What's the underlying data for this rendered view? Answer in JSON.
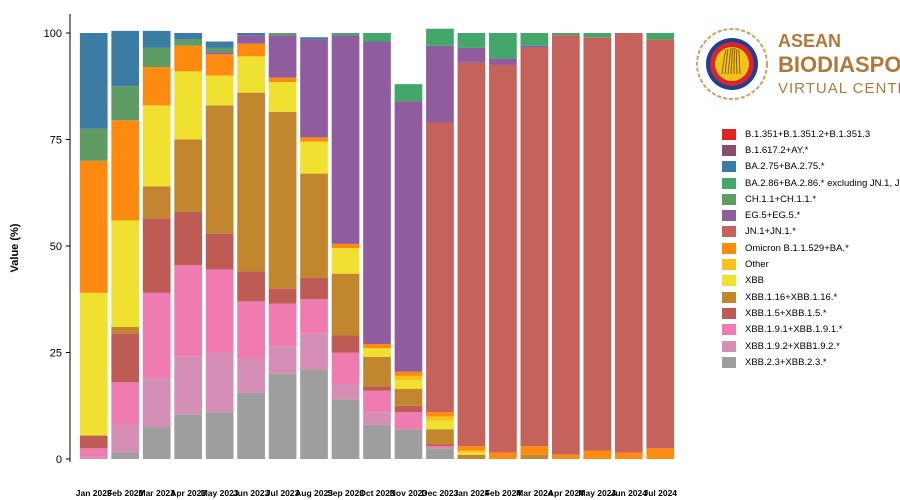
{
  "chart_data": {
    "type": "bar",
    "stacked": true,
    "ylabel": "Value (%)",
    "ylim": [
      0,
      100
    ],
    "yticks": [
      0,
      25,
      50,
      75,
      100
    ],
    "grid": false,
    "legend_position": "right",
    "categories": [
      "Jan 2023",
      "Feb 2023",
      "Mar 2023",
      "Apr 2023",
      "May 2023",
      "Jun 2023",
      "Jul 2023",
      "Aug 2023",
      "Sep 2023",
      "Oct 2023",
      "Nov 2023",
      "Dec 2023",
      "Jan 2024",
      "Feb 2024",
      "Mar 2024",
      "Apr 2024",
      "May 2024",
      "Jun 2024",
      "Jul 2024"
    ],
    "series": [
      {
        "name": "XBB.2.3+XBB.2.3.*",
        "color": "#9e9e9e",
        "values": [
          0,
          1.5,
          7.5,
          10.5,
          11,
          15.5,
          20,
          21,
          14,
          8,
          7,
          2.5,
          0,
          0,
          0,
          0,
          0,
          0,
          0
        ]
      },
      {
        "name": "XBB.1.9.2+XBB1.9.2.*",
        "color": "#d58fb7",
        "values": [
          0.5,
          6.5,
          11.5,
          13.5,
          14,
          8,
          6.5,
          8.5,
          3.5,
          3,
          0,
          0,
          0,
          0,
          0,
          0,
          0,
          0,
          0
        ]
      },
      {
        "name": "XBB.1.9.1+XBB.1.9.1.*",
        "color": "#ef7bb0",
        "values": [
          2,
          10,
          20,
          21.5,
          19.5,
          13.5,
          10,
          8,
          7.5,
          5,
          4,
          0.5,
          0,
          0,
          0,
          0,
          0,
          0,
          0
        ]
      },
      {
        "name": "XBB.1.5+XBB.1.5.*",
        "color": "#bf5b55",
        "values": [
          3,
          11.5,
          17.5,
          12.5,
          8.5,
          7,
          3.5,
          5,
          4,
          1,
          1.5,
          0.5,
          0,
          0,
          0,
          0,
          0,
          0,
          0
        ]
      },
      {
        "name": "XBB.1.16+XBB.1.16.*",
        "color": "#c1862e",
        "values": [
          0,
          1.5,
          7.5,
          17,
          30,
          42,
          41.5,
          24.5,
          14.5,
          7,
          4,
          3.5,
          1,
          0,
          1,
          0,
          0,
          0,
          0
        ]
      },
      {
        "name": "XBB",
        "color": "#f0e130",
        "values": [
          33.5,
          25,
          19,
          16,
          7,
          8.5,
          7,
          7.5,
          6,
          2,
          2,
          2,
          0.5,
          0,
          0,
          0,
          0,
          0,
          0
        ]
      },
      {
        "name": "Other",
        "color": "#f6c21c",
        "values": [
          0,
          0,
          0,
          0,
          0,
          0,
          0,
          0,
          0,
          0,
          1,
          1,
          0.5,
          0,
          0,
          0,
          0,
          0,
          0
        ]
      },
      {
        "name": "Omicron B.1.1.529+BA.*",
        "color": "#fe8a0f",
        "values": [
          31,
          23.5,
          9,
          6,
          5,
          3,
          1,
          1,
          1,
          1,
          1,
          1,
          1,
          1.5,
          2,
          1,
          2,
          1.5,
          2.5
        ]
      },
      {
        "name": "JN.1+JN.1.*",
        "color": "#c5625c",
        "values": [
          0,
          0,
          0,
          0,
          0,
          0,
          0,
          0,
          0,
          0,
          0,
          68,
          90,
          91,
          93.5,
          98.5,
          97,
          98.5,
          96
        ]
      },
      {
        "name": "EG.5+EG.5.*",
        "color": "#8f5c9e",
        "values": [
          0,
          0,
          0,
          0,
          0.5,
          2,
          10,
          23,
          49,
          71,
          63.5,
          18,
          3.5,
          1.5,
          0.5,
          0,
          0,
          0,
          0
        ]
      },
      {
        "name": "CH.1.1+CH.1.1.*",
        "color": "#5f9c63",
        "values": [
          7.5,
          8,
          4.5,
          1.5,
          1,
          0,
          0.5,
          0,
          0,
          0,
          0,
          0,
          0,
          0,
          0,
          0,
          0,
          0,
          0
        ]
      },
      {
        "name": "BA.2.86+BA.2.86.* excluding JN.1, JN.1.*",
        "color": "#43a76b",
        "values": [
          0,
          0,
          0,
          0,
          0,
          0,
          0,
          0,
          0.5,
          2,
          4,
          4,
          3.5,
          6,
          3,
          0.5,
          1,
          0,
          1.5
        ]
      },
      {
        "name": "BA.2.75+BA.2.75.*",
        "color": "#3b7ca4",
        "values": [
          22.5,
          13,
          4,
          1.5,
          1.5,
          0.5,
          0,
          0.5,
          0,
          0,
          0,
          0,
          0,
          0,
          0,
          0,
          0,
          0,
          0
        ]
      },
      {
        "name": "B.1.617.2+AY.*",
        "color": "#8a4c6a",
        "values": [
          0,
          0,
          0,
          0,
          0,
          0,
          0,
          0,
          0,
          0,
          0,
          0,
          0,
          0,
          0,
          0,
          0,
          0,
          0
        ]
      },
      {
        "name": "B.1.351+B.1.351.2+B.1.351.3",
        "color": "#e12320",
        "values": [
          0,
          0,
          0,
          0,
          0,
          0,
          0,
          0,
          0,
          0,
          0,
          0,
          0,
          0,
          0,
          0,
          0,
          0,
          0
        ]
      }
    ]
  },
  "legend": [
    {
      "label": "B.1.351+B.1.351.2+B.1.351.3",
      "color": "#e12320"
    },
    {
      "label": "B.1.617.2+AY.*",
      "color": "#8a4c6a"
    },
    {
      "label": "BA.2.75+BA.2.75.*",
      "color": "#3b7ca4"
    },
    {
      "label": "BA.2.86+BA.2.86.* excluding JN.1, JN.1.*",
      "color": "#43a76b"
    },
    {
      "label": "CH.1.1+CH.1.1.*",
      "color": "#5f9c63"
    },
    {
      "label": "EG.5+EG.5.*",
      "color": "#8f5c9e"
    },
    {
      "label": "JN.1+JN.1.*",
      "color": "#c5625c"
    },
    {
      "label": "Omicron B.1.1.529+BA.*",
      "color": "#fe8a0f"
    },
    {
      "label": "Other",
      "color": "#f6c21c"
    },
    {
      "label": "XBB",
      "color": "#f0e130"
    },
    {
      "label": "XBB.1.16+XBB.1.16.*",
      "color": "#c1862e"
    },
    {
      "label": "XBB.1.5+XBB.1.5.*",
      "color": "#bf5b55"
    },
    {
      "label": "XBB.1.9.1+XBB.1.9.1.*",
      "color": "#ef7bb0"
    },
    {
      "label": "XBB.1.9.2+XBB1.9.2.*",
      "color": "#d58fb7"
    },
    {
      "label": "XBB.2.3+XBB.2.3.*",
      "color": "#9e9e9e"
    }
  ],
  "logo": {
    "line1": "ASEAN",
    "line2": "BIODIASPORA",
    "line3": "VIRTUAL CENTER",
    "emblem_icon": "asean-emblem-icon",
    "colors": {
      "text": "#b0783a",
      "emblem_red": "#d7262e",
      "emblem_gold": "#f2c318",
      "emblem_blue": "#1f3f8f"
    }
  }
}
